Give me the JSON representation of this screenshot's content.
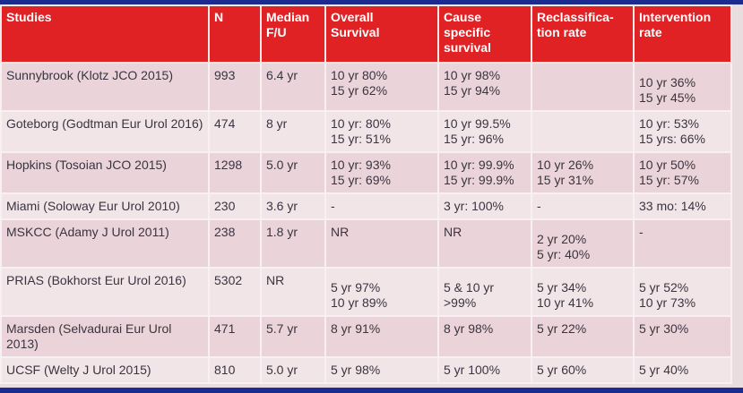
{
  "table": {
    "header": [
      [
        "Studies"
      ],
      [
        "N"
      ],
      [
        "Median",
        "F/U"
      ],
      [
        "Overall",
        "Survival"
      ],
      [
        "Cause",
        "specific",
        "survival"
      ],
      [
        "Reclassifica-",
        "tion rate"
      ],
      [
        "Intervention",
        "rate"
      ]
    ],
    "rows": [
      [
        [
          "Sunnybrook (Klotz JCO 2015)"
        ],
        [
          "993"
        ],
        [
          "6.4 yr"
        ],
        [
          "10 yr 80%",
          "15 yr 62%"
        ],
        [
          "10 yr 98%",
          "15 yr 94%"
        ],
        [],
        [
          "10 yr 36%",
          "15 yr 45%"
        ]
      ],
      [
        [
          "Goteborg (Godtman Eur Urol 2016)"
        ],
        [
          "474"
        ],
        [
          "8 yr"
        ],
        [
          "10 yr: 80%",
          "15 yr: 51%"
        ],
        [
          "10 yr 99.5%",
          "15 yr: 96%"
        ],
        [],
        [
          "10 yr: 53%",
          "15 yrs: 66%"
        ]
      ],
      [
        [
          "Hopkins (Tosoian JCO 2015)"
        ],
        [
          "1298"
        ],
        [
          "5.0 yr"
        ],
        [
          "10 yr: 93%",
          "15 yr: 69%"
        ],
        [
          "10 yr: 99.9%",
          "15 yr: 99.9%"
        ],
        [
          "10 yr 26%",
          "15 yr 31%"
        ],
        [
          "10 yr 50%",
          "15 yr: 57%"
        ]
      ],
      [
        [
          "Miami (Soloway Eur Urol 2010)"
        ],
        [
          "230"
        ],
        [
          "3.6 yr"
        ],
        [
          "-"
        ],
        [
          "3 yr: 100%"
        ],
        [
          "-"
        ],
        [
          "33 mo: 14%"
        ]
      ],
      [
        [
          "MSKCC (Adamy J Urol 2011)"
        ],
        [
          "238"
        ],
        [
          "1.8 yr"
        ],
        [
          "NR"
        ],
        [
          "NR"
        ],
        [
          "2 yr 20%",
          "5 yr: 40%"
        ],
        [
          "-"
        ]
      ],
      [
        [
          "PRIAS (Bokhorst Eur Urol 2016)"
        ],
        [
          "5302"
        ],
        [
          "NR"
        ],
        [
          "5 yr 97%",
          "10 yr 89%"
        ],
        [
          "5 & 10 yr",
          ">99%"
        ],
        [
          "5 yr 34%",
          "10 yr 41%"
        ],
        [
          "5 yr 52%",
          "10 yr 73%"
        ]
      ],
      [
        [
          "Marsden (Selvadurai Eur Urol 2013)"
        ],
        [
          "471"
        ],
        [
          "5.7 yr"
        ],
        [
          "8 yr 91%"
        ],
        [
          "8 yr 98%"
        ],
        [
          "5 yr 22%"
        ],
        [
          "5 yr 30%"
        ]
      ],
      [
        [
          "UCSF (Welty J Urol 2015)"
        ],
        [
          "810"
        ],
        [
          "5.0 yr"
        ],
        [
          "5 yr 98%"
        ],
        [
          "5 yr 100%"
        ],
        [
          "5 yr 60%"
        ],
        [
          "5 yr 40%"
        ]
      ]
    ]
  }
}
